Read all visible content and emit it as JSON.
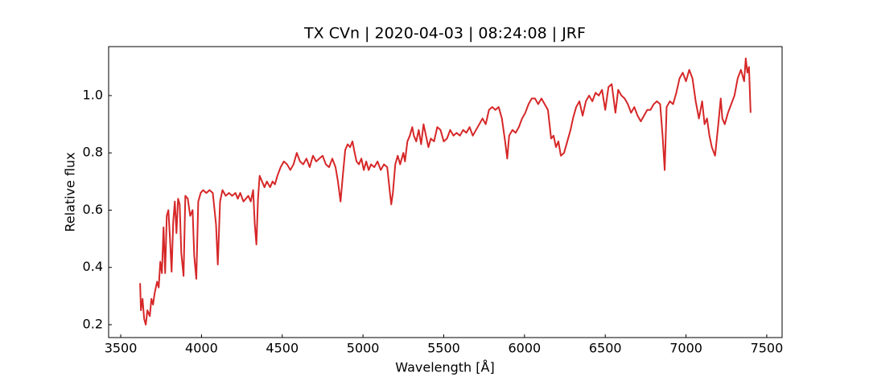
{
  "chart_data": {
    "type": "line",
    "title": "TX CVn | 2020-04-03 | 08:24:08 | JRF",
    "x_label": "Wavelength [Å]",
    "y_label": "Relative flux",
    "color": "#d62728",
    "xlim": [
      3425,
      7595
    ],
    "ylim": [
      0.155,
      1.171
    ],
    "xticks": [
      3500,
      4000,
      4500,
      5000,
      5500,
      6000,
      6500,
      7000,
      7500
    ],
    "yticks": [
      0.2,
      0.4,
      0.6,
      0.8,
      {
        "value": 1,
        "label": "1.0"
      }
    ],
    "x": [
      3620,
      3625,
      3635,
      3645,
      3655,
      3665,
      3680,
      3690,
      3700,
      3710,
      3725,
      3735,
      3745,
      3755,
      3765,
      3775,
      3785,
      3795,
      3805,
      3815,
      3825,
      3835,
      3845,
      3855,
      3865,
      3875,
      3889,
      3900,
      3915,
      3930,
      3945,
      3955,
      3968,
      3980,
      3995,
      4010,
      4030,
      4050,
      4070,
      4090,
      4101,
      4115,
      4130,
      4150,
      4170,
      4190,
      4210,
      4225,
      4240,
      4260,
      4275,
      4290,
      4305,
      4320,
      4330,
      4340,
      4350,
      4360,
      4375,
      4390,
      4405,
      4425,
      4440,
      4455,
      4470,
      4490,
      4510,
      4530,
      4550,
      4570,
      4590,
      4610,
      4630,
      4650,
      4670,
      4690,
      4710,
      4730,
      4750,
      4770,
      4790,
      4810,
      4830,
      4845,
      4861,
      4875,
      4890,
      4905,
      4920,
      4935,
      4945,
      4960,
      4975,
      4990,
      5005,
      5020,
      5035,
      5050,
      5070,
      5090,
      5110,
      5130,
      5150,
      5167,
      5175,
      5185,
      5200,
      5215,
      5230,
      5250,
      5260,
      5275,
      5290,
      5305,
      5315,
      5330,
      5345,
      5360,
      5375,
      5390,
      5405,
      5420,
      5440,
      5460,
      5480,
      5500,
      5520,
      5540,
      5560,
      5580,
      5600,
      5620,
      5640,
      5660,
      5680,
      5700,
      5720,
      5740,
      5760,
      5780,
      5800,
      5820,
      5840,
      5860,
      5880,
      5893,
      5905,
      5925,
      5945,
      5965,
      5985,
      6005,
      6025,
      6045,
      6065,
      6085,
      6105,
      6125,
      6145,
      6165,
      6180,
      6195,
      6210,
      6225,
      6245,
      6265,
      6285,
      6300,
      6320,
      6340,
      6360,
      6380,
      6400,
      6420,
      6440,
      6460,
      6480,
      6500,
      6520,
      6540,
      6563,
      6580,
      6600,
      6620,
      6640,
      6660,
      6680,
      6700,
      6720,
      6740,
      6760,
      6780,
      6800,
      6820,
      6840,
      6855,
      6868,
      6880,
      6900,
      6920,
      6940,
      6960,
      6980,
      7000,
      7020,
      7040,
      7060,
      7080,
      7100,
      7115,
      7130,
      7145,
      7160,
      7180,
      7200,
      7215,
      7225,
      7240,
      7260,
      7280,
      7300,
      7320,
      7340,
      7360,
      7370,
      7380,
      7390,
      7400
    ],
    "values": [
      0.345,
      0.25,
      0.29,
      0.22,
      0.2,
      0.25,
      0.23,
      0.29,
      0.27,
      0.31,
      0.35,
      0.33,
      0.42,
      0.38,
      0.54,
      0.38,
      0.58,
      0.6,
      0.5,
      0.385,
      0.56,
      0.63,
      0.52,
      0.64,
      0.62,
      0.45,
      0.37,
      0.65,
      0.64,
      0.58,
      0.6,
      0.44,
      0.36,
      0.63,
      0.66,
      0.67,
      0.66,
      0.67,
      0.66,
      0.55,
      0.41,
      0.63,
      0.67,
      0.65,
      0.66,
      0.65,
      0.66,
      0.64,
      0.66,
      0.63,
      0.64,
      0.65,
      0.63,
      0.67,
      0.55,
      0.48,
      0.64,
      0.72,
      0.7,
      0.68,
      0.7,
      0.68,
      0.7,
      0.69,
      0.72,
      0.75,
      0.77,
      0.76,
      0.74,
      0.76,
      0.8,
      0.77,
      0.76,
      0.78,
      0.75,
      0.79,
      0.77,
      0.78,
      0.79,
      0.76,
      0.75,
      0.78,
      0.75,
      0.7,
      0.63,
      0.72,
      0.81,
      0.83,
      0.82,
      0.84,
      0.81,
      0.77,
      0.76,
      0.78,
      0.74,
      0.77,
      0.74,
      0.76,
      0.75,
      0.77,
      0.74,
      0.76,
      0.75,
      0.66,
      0.62,
      0.66,
      0.76,
      0.79,
      0.76,
      0.8,
      0.77,
      0.84,
      0.86,
      0.89,
      0.86,
      0.84,
      0.88,
      0.83,
      0.9,
      0.86,
      0.82,
      0.85,
      0.84,
      0.89,
      0.88,
      0.84,
      0.85,
      0.88,
      0.86,
      0.87,
      0.86,
      0.88,
      0.87,
      0.89,
      0.86,
      0.88,
      0.9,
      0.92,
      0.9,
      0.95,
      0.96,
      0.95,
      0.96,
      0.92,
      0.84,
      0.78,
      0.86,
      0.88,
      0.87,
      0.89,
      0.92,
      0.94,
      0.97,
      0.99,
      0.99,
      0.97,
      0.99,
      0.97,
      0.95,
      0.85,
      0.86,
      0.82,
      0.84,
      0.79,
      0.8,
      0.84,
      0.88,
      0.92,
      0.96,
      0.98,
      0.93,
      0.98,
      1.0,
      0.98,
      1.01,
      1.0,
      1.02,
      0.95,
      1.03,
      1.04,
      0.94,
      1.02,
      1.0,
      0.99,
      0.97,
      0.94,
      0.96,
      0.93,
      0.91,
      0.93,
      0.95,
      0.95,
      0.97,
      0.98,
      0.97,
      0.86,
      0.74,
      0.96,
      0.98,
      0.97,
      1.01,
      1.06,
      1.08,
      1.05,
      1.09,
      1.06,
      0.98,
      0.92,
      0.98,
      0.9,
      0.92,
      0.86,
      0.82,
      0.79,
      0.9,
      0.99,
      0.92,
      0.9,
      0.94,
      0.97,
      1.0,
      1.06,
      1.09,
      1.05,
      1.13,
      1.08,
      1.1,
      0.94
    ]
  }
}
